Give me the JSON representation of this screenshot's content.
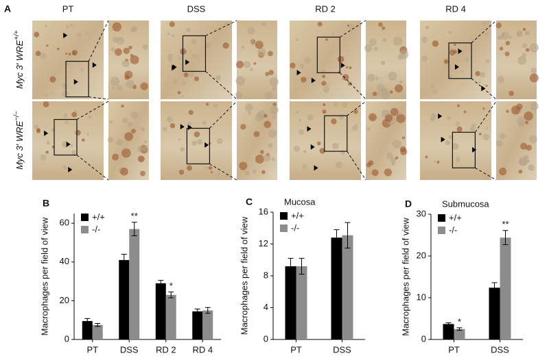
{
  "panel_a": {
    "label": "A",
    "columns": [
      "PT",
      "DSS",
      "RD 2",
      "RD 4"
    ],
    "rows": [
      {
        "text": "Myc 3′ WRE",
        "sup": "+/+"
      },
      {
        "text": "Myc 3′ WRE",
        "sup": "−/−"
      }
    ]
  },
  "chart_data": [
    {
      "type": "bar",
      "panel": "B",
      "ylabel": "Macrophages per field of view",
      "categories": [
        "PT",
        "DSS",
        "RD 2",
        "RD 4"
      ],
      "series": [
        {
          "name": "+/+",
          "color": "#000000",
          "values": [
            9.5,
            41,
            29,
            14.5
          ],
          "errors": [
            1.3,
            3,
            1.5,
            1.2
          ]
        },
        {
          "name": "-/-",
          "color": "#8c8c8c",
          "values": [
            7.5,
            57,
            23,
            15
          ],
          "errors": [
            0.8,
            3.5,
            1.5,
            1.5
          ]
        }
      ],
      "annotations": [
        {
          "text": "**",
          "category": "DSS",
          "series": "-/-"
        },
        {
          "text": "*",
          "category": "RD 2",
          "series": "-/-"
        }
      ],
      "ylim": [
        0,
        65
      ],
      "yticks": [
        0,
        20,
        40,
        60
      ]
    },
    {
      "type": "bar",
      "panel": "C",
      "title": "Mucosa",
      "ylabel": "Macrophages per field of view",
      "categories": [
        "PT",
        "DSS"
      ],
      "series": [
        {
          "name": "+/+",
          "color": "#000000",
          "values": [
            9.2,
            12.8
          ],
          "errors": [
            1,
            1
          ]
        },
        {
          "name": "-/-",
          "color": "#8c8c8c",
          "values": [
            9.2,
            13.1
          ],
          "errors": [
            1,
            1.6
          ]
        }
      ],
      "annotations": [],
      "ylim": [
        0,
        16
      ],
      "yticks": [
        0,
        4,
        8,
        12,
        16
      ]
    },
    {
      "type": "bar",
      "panel": "D",
      "title": "Submucosa",
      "ylabel": "Macrophages per field of view",
      "categories": [
        "PT",
        "DSS"
      ],
      "series": [
        {
          "name": "+/+",
          "color": "#000000",
          "values": [
            3.7,
            12.4
          ],
          "errors": [
            0.3,
            1.2
          ]
        },
        {
          "name": "-/-",
          "color": "#8c8c8c",
          "values": [
            2.5,
            24.4
          ],
          "errors": [
            0.3,
            1.7
          ]
        }
      ],
      "annotations": [
        {
          "text": "*",
          "category": "PT",
          "series": "-/-"
        },
        {
          "text": "**",
          "category": "DSS",
          "series": "-/-"
        }
      ],
      "ylim": [
        0,
        30
      ],
      "yticks": [
        0,
        10,
        20,
        30
      ]
    }
  ]
}
